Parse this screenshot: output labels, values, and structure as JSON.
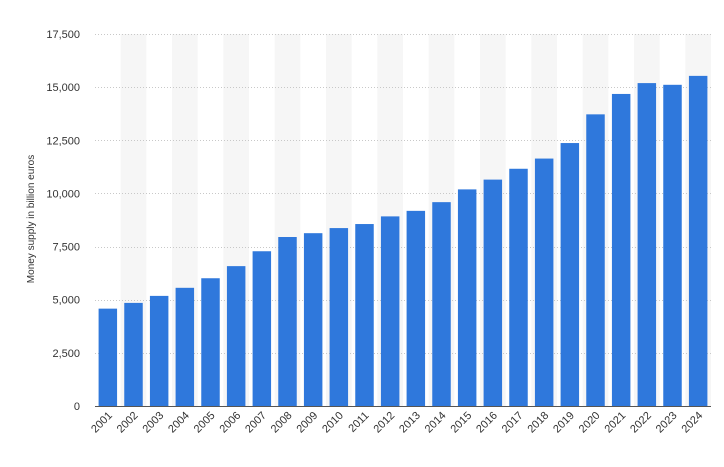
{
  "chart_data": {
    "type": "bar",
    "title": "",
    "xlabel": "",
    "ylabel": "Money supply in billion euros",
    "categories": [
      "2001",
      "2002",
      "2003",
      "2004",
      "2005",
      "2006",
      "2007",
      "2008",
      "2009",
      "2010",
      "2011",
      "2012",
      "2013",
      "2014",
      "2015",
      "2016",
      "2017",
      "2018",
      "2019",
      "2020",
      "2021",
      "2022",
      "2023",
      "2024"
    ],
    "values": [
      4580,
      4850,
      5180,
      5560,
      6010,
      6580,
      7280,
      7950,
      8130,
      8370,
      8560,
      8920,
      9180,
      9590,
      10190,
      10650,
      11160,
      11640,
      12370,
      13720,
      14680,
      15190,
      15110,
      15530
    ],
    "ylim": [
      0,
      17500
    ],
    "y_ticks": [
      0,
      2500,
      5000,
      7500,
      10000,
      12500,
      15000,
      17500
    ],
    "y_tick_labels": [
      "0",
      "2,500",
      "5,000",
      "7,500",
      "10,000",
      "12,500",
      "15,000",
      "17,500"
    ],
    "grid": true,
    "bar_color": "#2f78dc",
    "band_color": "#f6f6f6",
    "grid_color": "#c8c8c8"
  }
}
